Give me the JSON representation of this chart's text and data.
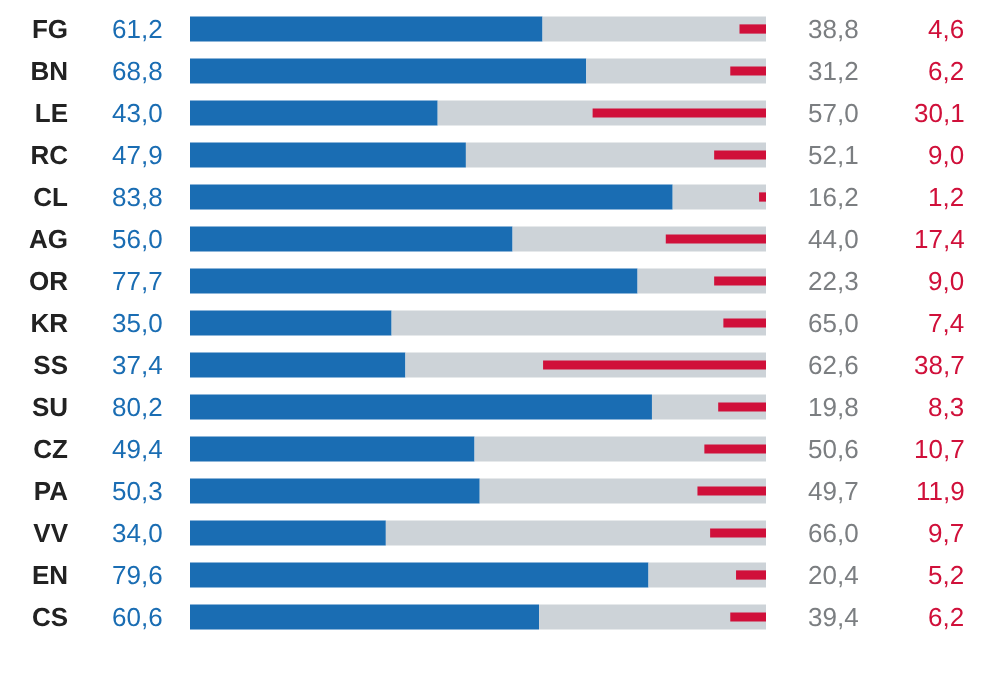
{
  "chart_data": [
    {
      "type": "bar",
      "orientation": "horizontal",
      "categories": [
        "FG",
        "BN",
        "LE",
        "RC",
        "CL",
        "AG",
        "OR",
        "KR",
        "SS",
        "SU",
        "CZ",
        "PA",
        "VV",
        "EN",
        "CS"
      ],
      "xlim": [
        0,
        100
      ],
      "tick_labels": "y",
      "stacked": true,
      "series": [
        {
          "color": "#1a6db3",
          "values": [
            61.2,
            68.8,
            43.0,
            47.9,
            83.8,
            56.0,
            77.7,
            35.0,
            37.4,
            80.2,
            49.4,
            50.3,
            34.0,
            79.6,
            60.6
          ],
          "value_labels": [
            "61,2",
            "68,8",
            "43,0",
            "47,9",
            "83,8",
            "56,0",
            "77,7",
            "35,0",
            "37,4",
            "80,2",
            "49,4",
            "50,3",
            "34,0",
            "79,6",
            "60,6"
          ]
        },
        {
          "color": "#cdd3d8",
          "values": [
            38.8,
            31.2,
            57.0,
            52.1,
            16.2,
            44.0,
            22.3,
            65.0,
            62.6,
            19.8,
            50.6,
            49.7,
            66.0,
            20.4,
            39.4
          ],
          "value_labels": [
            "38,8",
            "31,2",
            "57,0",
            "52,1",
            "16,2",
            "44,0",
            "22,3",
            "65,0",
            "62,6",
            "19,8",
            "50,6",
            "49,7",
            "66,0",
            "20,4",
            "39,4"
          ]
        }
      ]
    },
    {
      "type": "bar",
      "orientation": "horizontal",
      "categories": [
        null,
        null,
        null,
        null,
        null,
        null,
        null,
        null,
        null,
        null,
        null,
        null,
        null,
        null,
        null
      ],
      "xlim": [
        100,
        0
      ],
      "tick_labels": false,
      "series": [
        {
          "color": "#d0103a",
          "values": [
            4.6,
            6.2,
            30.1,
            9.0,
            1.2,
            17.4,
            9.0,
            7.4,
            38.7,
            8.3,
            10.7,
            11.9,
            9.7,
            5.2,
            6.2
          ],
          "value_labels": [
            "4,6",
            "6,2",
            "30,1",
            "9,0",
            "1,2",
            "17,4",
            "9,0",
            "7,4",
            "38,7",
            "8,3",
            "10,7",
            "11,9",
            "9,7",
            "5,2",
            "6,2"
          ]
        }
      ]
    }
  ]
}
